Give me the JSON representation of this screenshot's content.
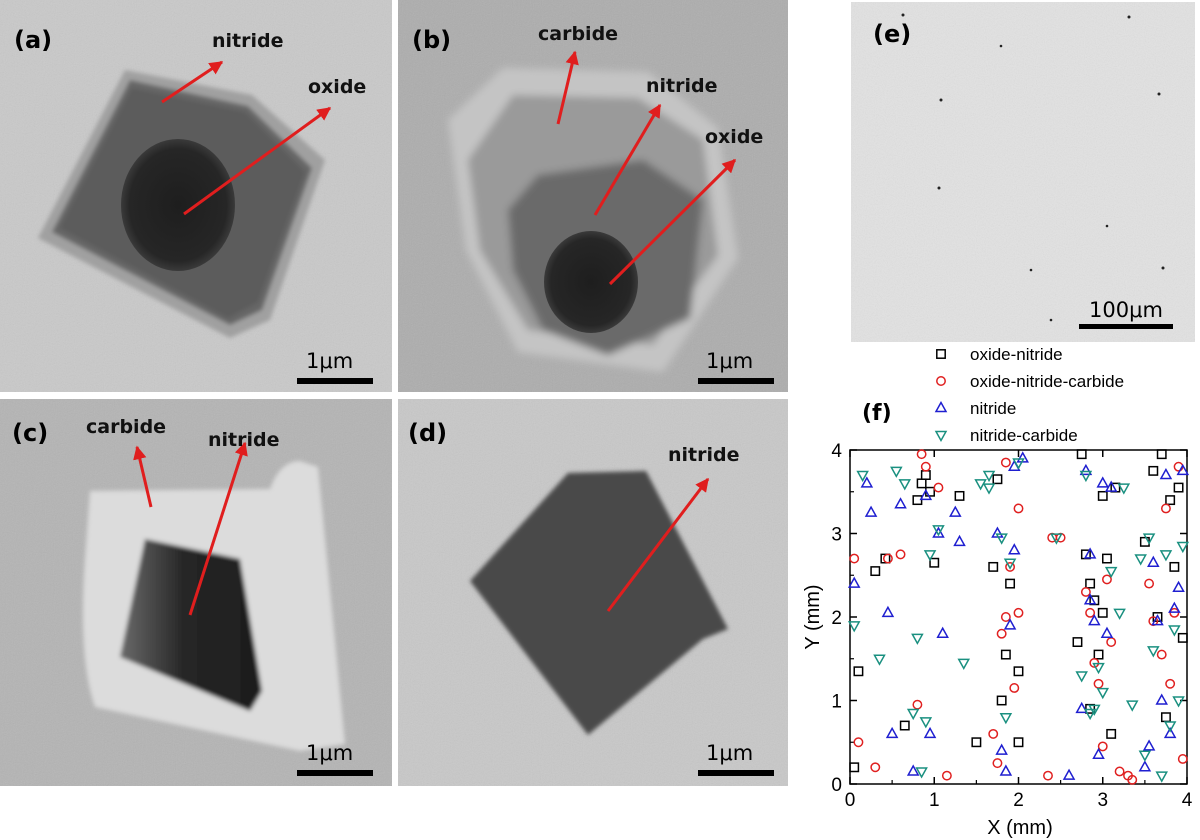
{
  "panels": {
    "a": {
      "label": "(a)",
      "phases": [
        "nitride",
        "oxide"
      ],
      "scale": "1μm"
    },
    "b": {
      "label": "(b)",
      "phases": [
        "carbide",
        "nitride",
        "oxide"
      ],
      "scale": "1μm"
    },
    "c": {
      "label": "(c)",
      "phases": [
        "carbide",
        "nitride"
      ],
      "scale": "1μm"
    },
    "d": {
      "label": "(d)",
      "phases": [
        "nitride"
      ],
      "scale": "1μm"
    },
    "e": {
      "label": "(e)",
      "scale": "100μm"
    },
    "f": {
      "label": "(f)"
    }
  },
  "colors": {
    "arrow": "#e01e1e",
    "oxide_nitride": "#000000",
    "oxide_nitride_carbide": "#e02020",
    "nitride": "#1f1fd0",
    "nitride_carbide": "#1a9080"
  },
  "chart_data": {
    "type": "scatter",
    "xlabel": "X (mm)",
    "ylabel": "Y (mm)",
    "xlim": [
      0,
      4
    ],
    "ylim": [
      0,
      4
    ],
    "xticks": [
      "0",
      "1",
      "2",
      "3",
      "4"
    ],
    "yticks": [
      "0",
      "1",
      "2",
      "3",
      "4"
    ],
    "legend_position": "above",
    "series": [
      {
        "name": "oxide-nitride",
        "marker": "square",
        "color": "#000000",
        "points": [
          [
            0.05,
            0.2
          ],
          [
            0.1,
            1.35
          ],
          [
            0.3,
            2.55
          ],
          [
            0.42,
            2.7
          ],
          [
            0.65,
            0.7
          ],
          [
            0.8,
            3.4
          ],
          [
            0.85,
            3.6
          ],
          [
            0.9,
            3.7
          ],
          [
            0.95,
            3.5
          ],
          [
            1.0,
            2.65
          ],
          [
            1.3,
            3.45
          ],
          [
            1.5,
            0.5
          ],
          [
            1.7,
            2.6
          ],
          [
            1.75,
            3.65
          ],
          [
            1.8,
            1.0
          ],
          [
            1.9,
            2.4
          ],
          [
            2.0,
            1.35
          ],
          [
            2.0,
            0.5
          ],
          [
            2.7,
            1.7
          ],
          [
            2.75,
            3.95
          ],
          [
            2.8,
            2.75
          ],
          [
            2.85,
            0.9
          ],
          [
            2.9,
            2.2
          ],
          [
            2.95,
            1.55
          ],
          [
            3.0,
            3.45
          ],
          [
            3.05,
            2.7
          ],
          [
            3.1,
            0.6
          ],
          [
            3.15,
            3.55
          ],
          [
            3.5,
            2.9
          ],
          [
            3.6,
            3.75
          ],
          [
            3.65,
            2.0
          ],
          [
            3.75,
            0.8
          ],
          [
            3.8,
            3.4
          ],
          [
            3.85,
            2.6
          ],
          [
            3.9,
            3.55
          ],
          [
            3.95,
            1.75
          ],
          [
            3.7,
            3.95
          ],
          [
            3.0,
            2.05
          ],
          [
            2.85,
            2.4
          ],
          [
            1.85,
            1.55
          ]
        ]
      },
      {
        "name": "oxide-nitride-carbide",
        "marker": "circle",
        "color": "#e02020",
        "points": [
          [
            0.05,
            2.7
          ],
          [
            0.1,
            0.5
          ],
          [
            0.3,
            0.2
          ],
          [
            0.45,
            2.7
          ],
          [
            0.6,
            2.75
          ],
          [
            0.8,
            0.95
          ],
          [
            0.85,
            3.95
          ],
          [
            0.9,
            3.8
          ],
          [
            1.05,
            3.55
          ],
          [
            1.7,
            0.6
          ],
          [
            1.75,
            0.25
          ],
          [
            1.8,
            1.8
          ],
          [
            1.85,
            2.0
          ],
          [
            1.9,
            2.6
          ],
          [
            1.95,
            1.15
          ],
          [
            2.0,
            3.3
          ],
          [
            2.0,
            2.05
          ],
          [
            2.4,
            2.95
          ],
          [
            2.5,
            2.95
          ],
          [
            2.8,
            2.3
          ],
          [
            2.85,
            2.05
          ],
          [
            2.9,
            1.45
          ],
          [
            2.95,
            1.2
          ],
          [
            3.0,
            0.45
          ],
          [
            3.05,
            2.45
          ],
          [
            3.1,
            1.7
          ],
          [
            3.2,
            0.15
          ],
          [
            3.3,
            0.1
          ],
          [
            3.35,
            0.05
          ],
          [
            3.55,
            2.4
          ],
          [
            3.6,
            1.95
          ],
          [
            3.7,
            1.55
          ],
          [
            3.75,
            3.3
          ],
          [
            3.8,
            1.2
          ],
          [
            3.85,
            2.05
          ],
          [
            3.9,
            3.8
          ],
          [
            3.95,
            0.3
          ],
          [
            2.35,
            0.1
          ],
          [
            1.85,
            3.85
          ],
          [
            1.15,
            0.1
          ]
        ]
      },
      {
        "name": "nitride",
        "marker": "triangle-up",
        "color": "#1f1fd0",
        "points": [
          [
            0.05,
            2.4
          ],
          [
            0.2,
            3.6
          ],
          [
            0.25,
            3.25
          ],
          [
            0.45,
            2.05
          ],
          [
            0.5,
            0.6
          ],
          [
            0.6,
            3.35
          ],
          [
            0.75,
            0.15
          ],
          [
            0.9,
            3.45
          ],
          [
            0.95,
            0.6
          ],
          [
            1.05,
            3.0
          ],
          [
            1.1,
            1.8
          ],
          [
            1.3,
            2.9
          ],
          [
            1.8,
            0.4
          ],
          [
            1.85,
            0.15
          ],
          [
            1.9,
            1.9
          ],
          [
            1.95,
            3.8
          ],
          [
            2.05,
            3.9
          ],
          [
            2.6,
            0.1
          ],
          [
            2.75,
            0.9
          ],
          [
            2.8,
            3.75
          ],
          [
            2.85,
            2.2
          ],
          [
            2.9,
            1.95
          ],
          [
            2.95,
            0.35
          ],
          [
            3.0,
            3.6
          ],
          [
            3.1,
            3.55
          ],
          [
            3.5,
            0.2
          ],
          [
            3.55,
            0.45
          ],
          [
            3.6,
            2.65
          ],
          [
            3.65,
            1.95
          ],
          [
            3.7,
            1.0
          ],
          [
            3.75,
            3.7
          ],
          [
            3.8,
            0.6
          ],
          [
            3.85,
            2.1
          ],
          [
            3.95,
            3.75
          ],
          [
            3.9,
            2.35
          ],
          [
            1.25,
            3.25
          ],
          [
            2.85,
            2.75
          ],
          [
            3.05,
            1.8
          ],
          [
            1.75,
            3.0
          ],
          [
            1.95,
            2.8
          ]
        ]
      },
      {
        "name": "nitride-carbide",
        "marker": "triangle-down",
        "color": "#1a9080",
        "points": [
          [
            0.05,
            1.9
          ],
          [
            0.15,
            3.7
          ],
          [
            0.35,
            1.5
          ],
          [
            0.55,
            3.75
          ],
          [
            0.65,
            3.6
          ],
          [
            0.75,
            0.85
          ],
          [
            0.8,
            1.75
          ],
          [
            0.85,
            0.15
          ],
          [
            0.9,
            0.75
          ],
          [
            0.95,
            2.75
          ],
          [
            1.05,
            3.05
          ],
          [
            1.35,
            1.45
          ],
          [
            1.55,
            3.6
          ],
          [
            1.65,
            3.7
          ],
          [
            1.8,
            2.95
          ],
          [
            1.85,
            0.8
          ],
          [
            1.9,
            2.65
          ],
          [
            2.0,
            3.85
          ],
          [
            2.45,
            2.95
          ],
          [
            2.75,
            1.3
          ],
          [
            2.8,
            3.7
          ],
          [
            2.85,
            0.85
          ],
          [
            2.9,
            0.9
          ],
          [
            2.95,
            1.4
          ],
          [
            3.0,
            1.1
          ],
          [
            3.1,
            2.55
          ],
          [
            3.2,
            2.05
          ],
          [
            3.25,
            3.55
          ],
          [
            3.35,
            0.95
          ],
          [
            3.45,
            2.7
          ],
          [
            3.5,
            0.35
          ],
          [
            3.55,
            2.95
          ],
          [
            3.6,
            1.6
          ],
          [
            3.7,
            0.1
          ],
          [
            3.75,
            2.75
          ],
          [
            3.8,
            0.7
          ],
          [
            3.85,
            1.85
          ],
          [
            3.9,
            1.0
          ],
          [
            3.95,
            2.85
          ],
          [
            1.65,
            3.55
          ]
        ]
      }
    ]
  }
}
